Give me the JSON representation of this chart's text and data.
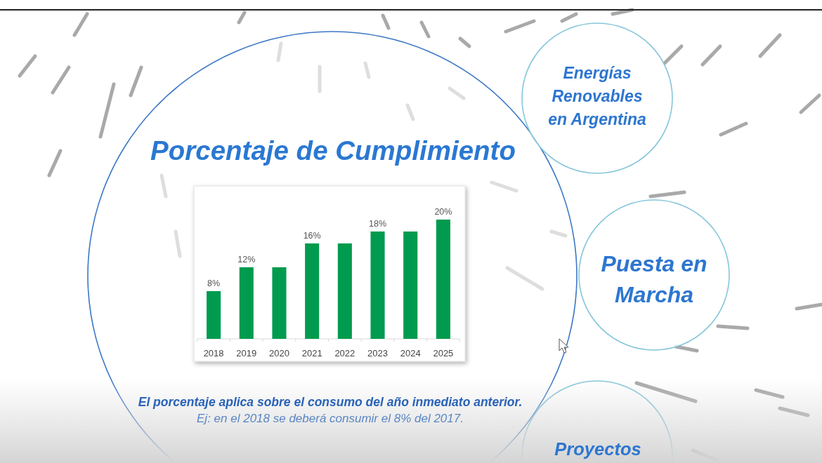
{
  "chart_data": {
    "type": "bar",
    "title": "Porcentaje de Cumplimiento",
    "categories": [
      "2018",
      "2019",
      "2020",
      "2021",
      "2022",
      "2023",
      "2024",
      "2025"
    ],
    "values": [
      8,
      12,
      12,
      16,
      16,
      18,
      18,
      20
    ],
    "value_labels": [
      "8%",
      "12%",
      null,
      "16%",
      null,
      "18%",
      null,
      "20%"
    ],
    "color": "#009b4e",
    "annotations": [
      "El porcentaje aplica sobre el consumo del año inmediato anterior.",
      "Ej: en el 2018 se deberá consumir el 8% del 2017.",
      "Energías Renovables en Argentina",
      "Puesta en Marcha",
      "Proyectos"
    ]
  }
}
